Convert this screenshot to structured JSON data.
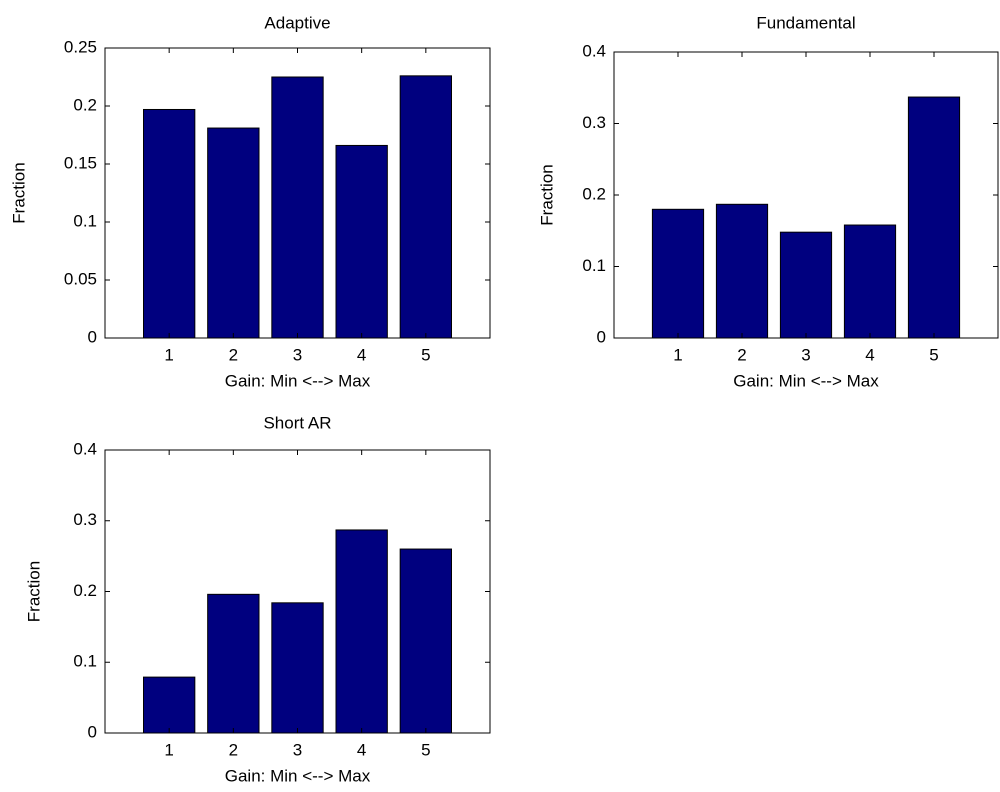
{
  "chart_data": [
    {
      "type": "bar",
      "title": "Adaptive",
      "xlabel": "Gain: Min <--> Max",
      "ylabel": "Fraction",
      "x": [
        1,
        2,
        3,
        4,
        5
      ],
      "values": [
        0.197,
        0.181,
        0.225,
        0.166,
        0.226
      ],
      "color": "#00007f",
      "xlim": [
        0,
        6
      ],
      "xticks": [
        1,
        2,
        3,
        4,
        5
      ],
      "ylim": [
        0,
        0.25
      ],
      "yticks": [
        0,
        0.05,
        0.1,
        0.15,
        0.2,
        0.25
      ]
    },
    {
      "type": "bar",
      "title": "Fundamental",
      "xlabel": "Gain: Min <--> Max",
      "ylabel": "Fraction",
      "x": [
        1,
        2,
        3,
        4,
        5
      ],
      "values": [
        0.18,
        0.187,
        0.148,
        0.158,
        0.337
      ],
      "color": "#00007f",
      "xlim": [
        0,
        6
      ],
      "xticks": [
        1,
        2,
        3,
        4,
        5
      ],
      "ylim": [
        0,
        0.4
      ],
      "yticks": [
        0,
        0.1,
        0.2,
        0.3,
        0.4
      ]
    },
    {
      "type": "bar",
      "title": "Short AR",
      "xlabel": "Gain: Min <--> Max",
      "ylabel": "Fraction",
      "x": [
        1,
        2,
        3,
        4,
        5
      ],
      "values": [
        0.079,
        0.196,
        0.184,
        0.287,
        0.26
      ],
      "color": "#00007f",
      "xlim": [
        0,
        6
      ],
      "xticks": [
        1,
        2,
        3,
        4,
        5
      ],
      "ylim": [
        0,
        0.4
      ],
      "yticks": [
        0,
        0.1,
        0.2,
        0.3,
        0.4
      ]
    }
  ]
}
